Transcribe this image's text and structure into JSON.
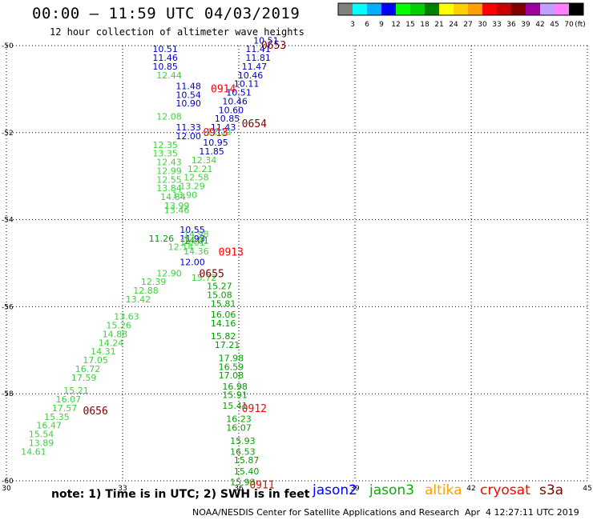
{
  "header": {
    "title": "00:00 – 11:59 UTC 04/03/2019",
    "subtitle": "12 hour collection of altimeter wave heights"
  },
  "colorbar": {
    "colors": [
      "#808080",
      "#00ffff",
      "#00b0ff",
      "#0000ff",
      "#00ff00",
      "#00d000",
      "#008000",
      "#ffff00",
      "#ffd000",
      "#ffa000",
      "#ff0000",
      "#c80000",
      "#800000",
      "#a000a0",
      "#c0a0ff",
      "#ff80ff",
      "#000000"
    ],
    "labels": [
      "3",
      "6",
      "9",
      "12",
      "15",
      "18",
      "21",
      "24",
      "27",
      "30",
      "33",
      "36",
      "39",
      "42",
      "45",
      "70"
    ],
    "unit": "(ft)"
  },
  "axes": {
    "x_ticks": [
      "30",
      "33",
      "36",
      "39",
      "42",
      "45"
    ],
    "y_ticks": [
      "-50",
      "-52",
      "-54",
      "-56",
      "-58",
      "-60"
    ],
    "x_range": [
      30,
      45
    ],
    "y_range": [
      -60,
      -50
    ]
  },
  "tracks": [
    {
      "satellite": "jason2",
      "color": "#0000c0",
      "points": [
        {
          "lon": 34.1,
          "lat": -50.15,
          "v": "10.51"
        },
        {
          "lon": 34.1,
          "lat": -50.35,
          "v": "11.46"
        },
        {
          "lon": 34.1,
          "lat": -50.55,
          "v": "10.85"
        },
        {
          "lon": 34.7,
          "lat": -51.0,
          "v": "11.48"
        },
        {
          "lon": 34.7,
          "lat": -51.2,
          "v": "10.54"
        },
        {
          "lon": 34.7,
          "lat": -51.4,
          "v": "10.90"
        },
        {
          "lon": 34.7,
          "lat": -51.95,
          "v": "11.33"
        },
        {
          "lon": 34.7,
          "lat": -52.15,
          "v": "12.00"
        },
        {
          "lon": 34.8,
          "lat": -54.3,
          "v": "10.55"
        },
        {
          "lon": 34.8,
          "lat": -54.5,
          "v": "11.93"
        },
        {
          "lon": 34.8,
          "lat": -55.05,
          "v": "12.00"
        }
      ]
    },
    {
      "satellite": "jason2",
      "color": "#0000c0",
      "points": [
        {
          "lon": 36.7,
          "lat": -49.95,
          "v": "10.51"
        },
        {
          "lon": 36.5,
          "lat": -50.15,
          "v": "11.41"
        },
        {
          "lon": 36.5,
          "lat": -50.35,
          "v": "11.81"
        },
        {
          "lon": 36.4,
          "lat": -50.55,
          "v": "11.47"
        },
        {
          "lon": 36.3,
          "lat": -50.75,
          "v": "10.46"
        },
        {
          "lon": 36.2,
          "lat": -50.95,
          "v": "10.11"
        },
        {
          "lon": 36.0,
          "lat": -51.15,
          "v": "10.51"
        },
        {
          "lon": 35.9,
          "lat": -51.35,
          "v": "10.46"
        },
        {
          "lon": 35.8,
          "lat": -51.55,
          "v": "10.60"
        },
        {
          "lon": 35.7,
          "lat": -51.75,
          "v": "10.85"
        },
        {
          "lon": 35.6,
          "lat": -51.95,
          "v": "11.43"
        },
        {
          "lon": 35.4,
          "lat": -52.3,
          "v": "10.95"
        },
        {
          "lon": 35.3,
          "lat": -52.5,
          "v": "11.85"
        }
      ]
    },
    {
      "satellite": "jason3",
      "color": "#40d040",
      "points": [
        {
          "lon": 34.2,
          "lat": -50.75,
          "v": "12.44"
        },
        {
          "lon": 34.2,
          "lat": -51.7,
          "v": "12.08"
        },
        {
          "lon": 34.1,
          "lat": -52.35,
          "v": "12.35"
        },
        {
          "lon": 34.1,
          "lat": -52.55,
          "v": "13.35"
        },
        {
          "lon": 34.2,
          "lat": -52.75,
          "v": "12.43"
        },
        {
          "lon": 34.2,
          "lat": -52.95,
          "v": "12.99"
        },
        {
          "lon": 34.2,
          "lat": -53.15,
          "v": "12.55"
        },
        {
          "lon": 34.2,
          "lat": -53.35,
          "v": "13.84"
        },
        {
          "lon": 34.3,
          "lat": -53.55,
          "v": "14.84"
        },
        {
          "lon": 34.4,
          "lat": -53.75,
          "v": "13.99"
        },
        {
          "lon": 34.4,
          "lat": -53.85,
          "v": "13.46"
        },
        {
          "lon": 34.5,
          "lat": -54.7,
          "v": "12.14"
        },
        {
          "lon": 34.2,
          "lat": -55.3,
          "v": "12.90"
        },
        {
          "lon": 33.8,
          "lat": -55.5,
          "v": "12.39"
        },
        {
          "lon": 33.6,
          "lat": -55.7,
          "v": "12.88"
        },
        {
          "lon": 33.4,
          "lat": -55.9,
          "v": "13.42"
        },
        {
          "lon": 33.1,
          "lat": -56.3,
          "v": "13.63"
        },
        {
          "lon": 32.9,
          "lat": -56.5,
          "v": "15.26"
        },
        {
          "lon": 32.8,
          "lat": -56.7,
          "v": "14.88"
        },
        {
          "lon": 32.7,
          "lat": -56.9,
          "v": "14.24"
        },
        {
          "lon": 32.5,
          "lat": -57.1,
          "v": "14.31"
        },
        {
          "lon": 32.3,
          "lat": -57.3,
          "v": "17.05"
        },
        {
          "lon": 32.1,
          "lat": -57.5,
          "v": "16.72"
        },
        {
          "lon": 32.0,
          "lat": -57.7,
          "v": "17.59"
        },
        {
          "lon": 31.8,
          "lat": -58.0,
          "v": "15.21"
        },
        {
          "lon": 31.6,
          "lat": -58.2,
          "v": "16.07"
        },
        {
          "lon": 31.5,
          "lat": -58.4,
          "v": "17.57"
        },
        {
          "lon": 31.3,
          "lat": -58.6,
          "v": "15.35"
        },
        {
          "lon": 31.1,
          "lat": -58.8,
          "v": "16.47"
        },
        {
          "lon": 30.9,
          "lat": -59.0,
          "v": "15.54"
        },
        {
          "lon": 30.9,
          "lat": -59.2,
          "v": "13.89"
        },
        {
          "lon": 30.7,
          "lat": -59.4,
          "v": "14.61"
        },
        {
          "lon": 35.5,
          "lat": -52.05,
          "v": "12.21"
        },
        {
          "lon": 35.1,
          "lat": -52.7,
          "v": "12.34"
        },
        {
          "lon": 35.0,
          "lat": -52.9,
          "v": "12.21"
        },
        {
          "lon": 34.9,
          "lat": -53.1,
          "v": "12.58"
        },
        {
          "lon": 34.8,
          "lat": -53.3,
          "v": "13.29"
        },
        {
          "lon": 34.6,
          "lat": -53.5,
          "v": "13.90"
        },
        {
          "lon": 34.9,
          "lat": -54.4,
          "v": "14.98"
        },
        {
          "lon": 34.8,
          "lat": -54.6,
          "v": "14.01"
        },
        {
          "lon": 34.9,
          "lat": -54.8,
          "v": "14.36"
        },
        {
          "lon": 35.1,
          "lat": -55.4,
          "v": "15.72"
        }
      ]
    },
    {
      "satellite": "jason3",
      "color": "#00a000",
      "points": [
        {
          "lon": 34.0,
          "lat": -54.5,
          "v": "11.26"
        },
        {
          "lon": 34.9,
          "lat": -54.55,
          "v": "14.01"
        },
        {
          "lon": 35.5,
          "lat": -55.6,
          "v": "15.27"
        },
        {
          "lon": 35.5,
          "lat": -55.8,
          "v": "15.08"
        },
        {
          "lon": 35.6,
          "lat": -56.0,
          "v": "15.81"
        },
        {
          "lon": 35.6,
          "lat": -56.25,
          "v": "16.06"
        },
        {
          "lon": 35.6,
          "lat": -56.45,
          "v": "14.16"
        },
        {
          "lon": 35.6,
          "lat": -56.75,
          "v": "15.82"
        },
        {
          "lon": 35.7,
          "lat": -56.95,
          "v": "17.21"
        },
        {
          "lon": 35.8,
          "lat": -57.25,
          "v": "17.98"
        },
        {
          "lon": 35.8,
          "lat": -57.45,
          "v": "16.59"
        },
        {
          "lon": 35.8,
          "lat": -57.65,
          "v": "17.08"
        },
        {
          "lon": 35.9,
          "lat": -57.9,
          "v": "16.98"
        },
        {
          "lon": 35.9,
          "lat": -58.1,
          "v": "15.91"
        },
        {
          "lon": 35.9,
          "lat": -58.35,
          "v": "15.41"
        },
        {
          "lon": 36.0,
          "lat": -58.65,
          "v": "16.23"
        },
        {
          "lon": 36.0,
          "lat": -58.85,
          "v": "16.07"
        },
        {
          "lon": 36.1,
          "lat": -59.15,
          "v": "15.93"
        },
        {
          "lon": 36.1,
          "lat": -59.4,
          "v": "16.53"
        },
        {
          "lon": 36.2,
          "lat": -59.6,
          "v": "15.87"
        },
        {
          "lon": 36.2,
          "lat": -59.85,
          "v": "15.40"
        },
        {
          "lon": 36.1,
          "lat": -60.1,
          "v": "15.93"
        }
      ]
    }
  ],
  "time_labels": [
    {
      "lon": 36.9,
      "lat": -50.0,
      "v": "0653",
      "color": "#800000"
    },
    {
      "lon": 35.6,
      "lat": -51.0,
      "v": "0914",
      "color": "#ff0000"
    },
    {
      "lon": 36.4,
      "lat": -51.8,
      "v": "0654",
      "color": "#800000"
    },
    {
      "lon": 35.4,
      "lat": -52.0,
      "v": "0913",
      "color": "#ff0000"
    },
    {
      "lon": 35.8,
      "lat": -54.75,
      "v": "0913",
      "color": "#ff0000"
    },
    {
      "lon": 35.3,
      "lat": -55.25,
      "v": "0655",
      "color": "#800000"
    },
    {
      "lon": 36.4,
      "lat": -58.35,
      "v": "0912",
      "color": "#ff0000"
    },
    {
      "lon": 32.3,
      "lat": -58.4,
      "v": "0656",
      "color": "#800000"
    },
    {
      "lon": 36.6,
      "lat": -60.1,
      "v": "0911",
      "color": "#ff0000"
    }
  ],
  "legend": {
    "note": "note: 1) Time is in UTC; 2) SWH is in feet",
    "satellites": [
      {
        "name": "jason2",
        "color": "#0000ff"
      },
      {
        "name": "jason3",
        "color": "#00b000"
      },
      {
        "name": "altika",
        "color": "#ffa000"
      },
      {
        "name": "cryosat",
        "color": "#ff0000"
      },
      {
        "name": "s3a",
        "color": "#800000"
      }
    ]
  },
  "footer": {
    "left": "NOAA/NESDIS Center for Satellite Applications and Research",
    "right": "Apr  4 12:27:11 UTC 2019"
  }
}
